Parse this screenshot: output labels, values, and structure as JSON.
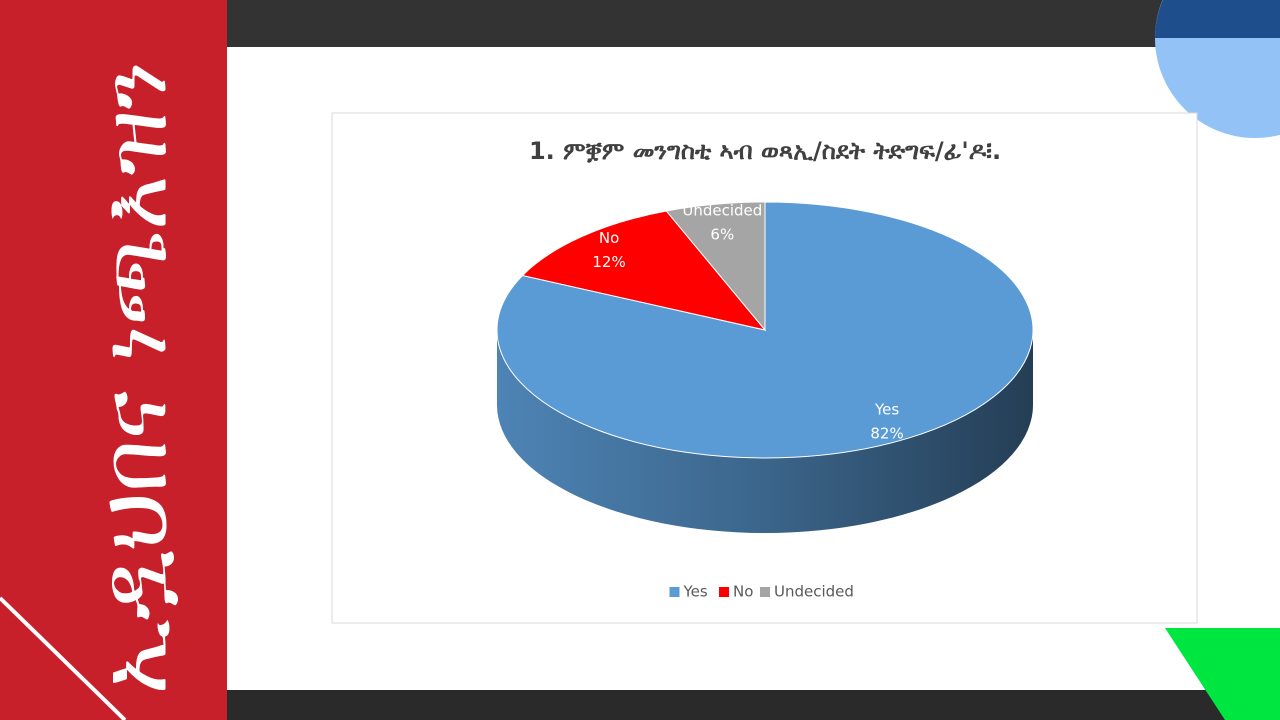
{
  "banner": {
    "text": "ኢዷህበና ነጫእዝን"
  },
  "chart_data": {
    "type": "pie",
    "title": "1. ምቛም መንግስቲ ኣብ ወጻኢ/ስደት ትድግፍ/ፊ'ዶ፧.",
    "categories": [
      "Yes",
      "No",
      "Undecided"
    ],
    "values": [
      82,
      12,
      6
    ],
    "value_labels": [
      "82%",
      "12%",
      "6%"
    ],
    "colors": [
      "#5b9bd5",
      "#ff0000",
      "#a5a5a5"
    ],
    "legend": "bottom"
  }
}
